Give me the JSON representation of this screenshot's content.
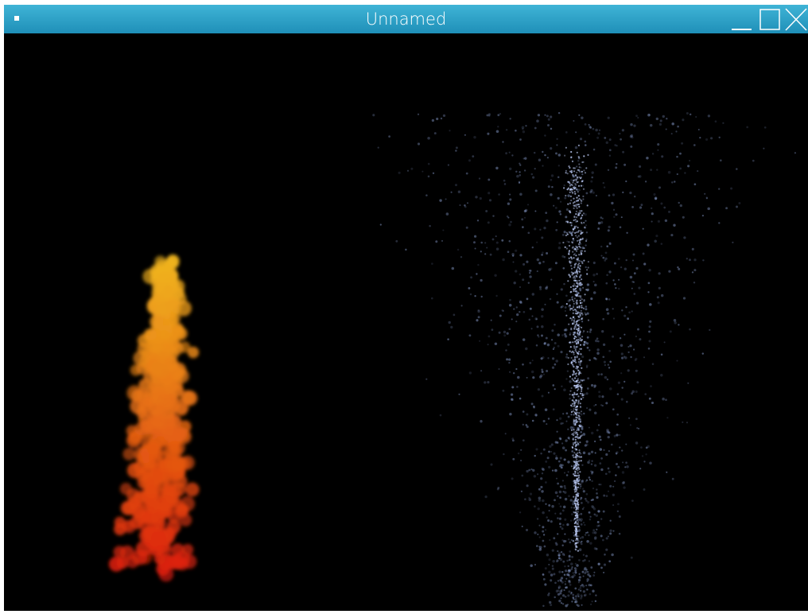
{
  "window": {
    "title": "Unnamed"
  }
}
